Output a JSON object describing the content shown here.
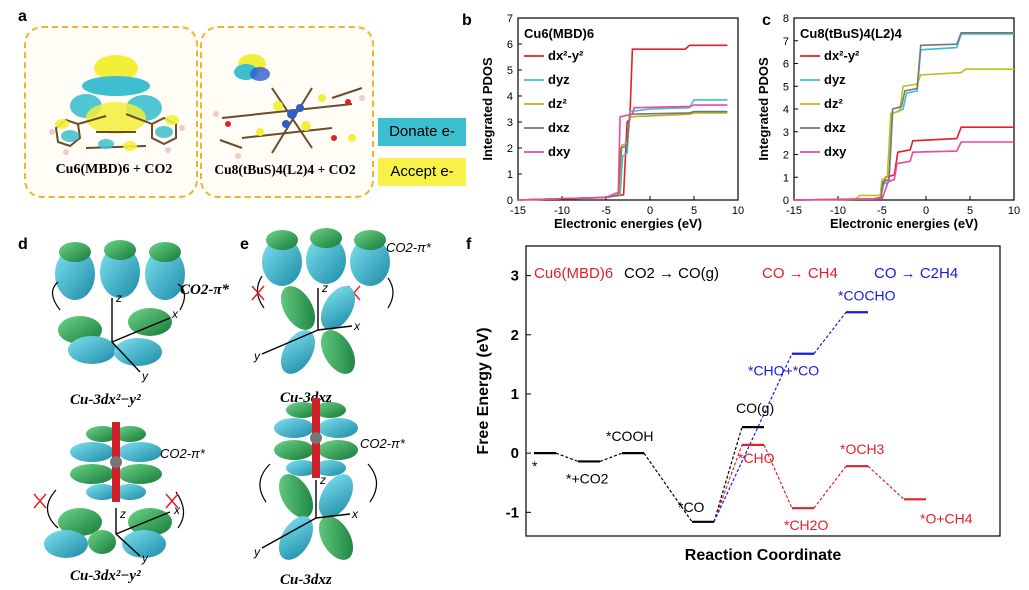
{
  "panel_a": {
    "label": "a",
    "left_caption": "Cu6(MBD)6 + CO2",
    "right_caption": "Cu8(tBuS)4(L2)4 + CO2",
    "legend": [
      {
        "label": "Donate e-",
        "color": "#3dbfcf"
      },
      {
        "label": "Accept e-",
        "color": "#f7f14a"
      }
    ]
  },
  "panel_d": {
    "label": "d",
    "top_caption": "Cu-3dx²−y²",
    "bottom_caption": "Cu-3dx²−y²",
    "co2_label": "CO2-π*"
  },
  "panel_e": {
    "label": "e",
    "top_caption": "Cu-3dxz",
    "bottom_caption": "Cu-3dxz",
    "co2_label": "CO2-π*"
  },
  "axis_letters": {
    "x": "x",
    "y": "y",
    "z": "z"
  },
  "chart_data": [
    {
      "panel": "b",
      "type": "line",
      "title": "Cu6(MBD)6",
      "xlabel": "Electronic energies (eV)",
      "ylabel": "Integrated PDOS",
      "xlim": [
        -15,
        10
      ],
      "ylim": [
        0,
        7
      ],
      "xticks": [
        -15,
        -10,
        -5,
        0,
        5,
        10
      ],
      "yticks": [
        0,
        1,
        2,
        3,
        4,
        5,
        6,
        7
      ],
      "legend_position": "top-left",
      "series": [
        {
          "name": "dx²-y²",
          "color": "#e0202a",
          "points": [
            [
              -15,
              0
            ],
            [
              -5,
              0.1
            ],
            [
              -3,
              0.2
            ],
            [
              -2.6,
              3.0
            ],
            [
              -2.3,
              3.1
            ],
            [
              -2.0,
              5.8
            ],
            [
              4.0,
              5.8
            ],
            [
              4.5,
              5.95
            ],
            [
              8.8,
              5.95
            ]
          ]
        },
        {
          "name": "dyz",
          "color": "#3bbfd3",
          "points": [
            [
              -15,
              0
            ],
            [
              -5,
              0.1
            ],
            [
              -3.4,
              0.2
            ],
            [
              -3.1,
              1.7
            ],
            [
              -2.6,
              1.8
            ],
            [
              -2.3,
              3.4
            ],
            [
              0,
              3.5
            ],
            [
              4.5,
              3.55
            ],
            [
              5,
              3.85
            ],
            [
              8.8,
              3.85
            ]
          ]
        },
        {
          "name": "dz²",
          "color": "#b8b020",
          "points": [
            [
              -15,
              0
            ],
            [
              -5,
              0.1
            ],
            [
              -3.5,
              0.2
            ],
            [
              -3.2,
              2.1
            ],
            [
              -2.6,
              2.2
            ],
            [
              -2.3,
              3.2
            ],
            [
              4.5,
              3.3
            ],
            [
              5,
              3.35
            ],
            [
              8.8,
              3.35
            ]
          ]
        },
        {
          "name": "dxz",
          "color": "#777777",
          "points": [
            [
              -15,
              0
            ],
            [
              -5,
              0.1
            ],
            [
              -3.6,
              0.2
            ],
            [
              -3.3,
              2.0
            ],
            [
              -2.6,
              2.1
            ],
            [
              -2.3,
              3.3
            ],
            [
              4.5,
              3.35
            ],
            [
              5,
              3.4
            ],
            [
              8.8,
              3.4
            ]
          ]
        },
        {
          "name": "dxy",
          "color": "#f0479a",
          "points": [
            [
              -15,
              0
            ],
            [
              -5,
              0.1
            ],
            [
              -3.6,
              0.3
            ],
            [
              -3.4,
              3.2
            ],
            [
              -2.0,
              3.3
            ],
            [
              -1.8,
              3.55
            ],
            [
              4.5,
              3.6
            ],
            [
              5,
              3.65
            ],
            [
              8.8,
              3.65
            ]
          ]
        }
      ]
    },
    {
      "panel": "c",
      "type": "line",
      "title": "Cu8(tBuS)4(L2)4",
      "xlabel": "Electronic energies (eV)",
      "ylabel": "Integrated PDOS",
      "xlim": [
        -15,
        10
      ],
      "ylim": [
        0,
        8
      ],
      "xticks": [
        -15,
        -10,
        -5,
        0,
        5,
        10
      ],
      "yticks": [
        0,
        1,
        2,
        3,
        4,
        5,
        6,
        7,
        8
      ],
      "legend_position": "top-left",
      "series": [
        {
          "name": "dx²-y²",
          "color": "#e0202a",
          "points": [
            [
              -15,
              0
            ],
            [
              -6,
              0.05
            ],
            [
              -5.2,
              0.1
            ],
            [
              -4.6,
              1.0
            ],
            [
              -3.6,
              1.1
            ],
            [
              -3.2,
              2.1
            ],
            [
              -1.8,
              2.2
            ],
            [
              -1.5,
              2.6
            ],
            [
              3.5,
              2.7
            ],
            [
              4,
              3.2
            ],
            [
              10,
              3.2
            ]
          ]
        },
        {
          "name": "dyz",
          "color": "#3bbfd3",
          "points": [
            [
              -15,
              0
            ],
            [
              -6,
              0.05
            ],
            [
              -5.2,
              0.1
            ],
            [
              -4.8,
              0.7
            ],
            [
              -4.2,
              0.8
            ],
            [
              -3.8,
              3.8
            ],
            [
              -2.6,
              4.0
            ],
            [
              -2.2,
              4.7
            ],
            [
              -1,
              4.8
            ],
            [
              -0.6,
              6.6
            ],
            [
              3.5,
              6.7
            ],
            [
              4,
              7.3
            ],
            [
              10,
              7.3
            ]
          ]
        },
        {
          "name": "dz²",
          "color": "#c7bd1a",
          "points": [
            [
              -15,
              0
            ],
            [
              -8,
              0.05
            ],
            [
              -7.5,
              0.2
            ],
            [
              -5.2,
              0.2
            ],
            [
              -5,
              0.9
            ],
            [
              -4.4,
              1.0
            ],
            [
              -4.0,
              3.8
            ],
            [
              -3.0,
              3.9
            ],
            [
              -2.6,
              5.0
            ],
            [
              -1.0,
              5.1
            ],
            [
              -0.6,
              5.5
            ],
            [
              4,
              5.6
            ],
            [
              4.5,
              5.75
            ],
            [
              10,
              5.75
            ]
          ]
        },
        {
          "name": "dxz",
          "color": "#777777",
          "points": [
            [
              -15,
              0
            ],
            [
              -6,
              0.05
            ],
            [
              -5.1,
              0.1
            ],
            [
              -4.9,
              0.8
            ],
            [
              -4.2,
              0.9
            ],
            [
              -3.8,
              4.0
            ],
            [
              -2.8,
              4.1
            ],
            [
              -2.4,
              4.8
            ],
            [
              -1,
              4.9
            ],
            [
              -0.6,
              6.8
            ],
            [
              3.5,
              6.85
            ],
            [
              4,
              7.35
            ],
            [
              10,
              7.35
            ]
          ]
        },
        {
          "name": "dxy",
          "color": "#f0479a",
          "points": [
            [
              -15,
              0
            ],
            [
              -5,
              0.05
            ],
            [
              -4.3,
              0.8
            ],
            [
              -3.6,
              0.9
            ],
            [
              -3.3,
              1.6
            ],
            [
              -1.8,
              1.7
            ],
            [
              -1.5,
              2.1
            ],
            [
              3.5,
              2.15
            ],
            [
              4,
              2.55
            ],
            [
              10,
              2.55
            ]
          ]
        }
      ]
    },
    {
      "panel": "f",
      "type": "line",
      "title": "",
      "xlabel": "Reaction Coordinate",
      "ylabel": "Free Energy (eV)",
      "ylim": [
        -1.4,
        3.5
      ],
      "yticks": [
        -1,
        0,
        1,
        2,
        3
      ],
      "header": {
        "system": "Cu6(MBD)6",
        "co2_route": "CO2 → CO(g)",
        "ch4_route": "CO → CH4",
        "c2h4_route": "CO → C2H4"
      },
      "levels": [
        {
          "label": "*",
          "value": 0.0,
          "color": "#000000",
          "slot": 0
        },
        {
          "label": "*+CO2",
          "value": -0.14,
          "color": "#000000",
          "slot": 1
        },
        {
          "label": "*COOH",
          "value": 0.0,
          "color": "#000000",
          "slot": 2
        },
        {
          "label": "*CO",
          "value": -1.16,
          "color": "#000000",
          "slot": 3
        },
        {
          "label": "CO(g)",
          "value": 0.44,
          "color": "#000000",
          "slot": 4
        },
        {
          "label": "*CHO",
          "value": 0.14,
          "color": "#e0202a",
          "slot": 4
        },
        {
          "label": "*CH2O",
          "value": -0.93,
          "color": "#e0202a",
          "slot": 5
        },
        {
          "label": "*OCH3",
          "value": -0.22,
          "color": "#e0202a",
          "slot": 6
        },
        {
          "label": "*O+CH4",
          "value": -0.78,
          "color": "#e0202a",
          "slot": 7
        },
        {
          "label": "*CHO+*CO",
          "value": 1.68,
          "color": "#1a1adb",
          "slot": 5
        },
        {
          "label": "*COCHO",
          "value": 2.38,
          "color": "#1a1adb",
          "slot": 6
        }
      ]
    }
  ]
}
